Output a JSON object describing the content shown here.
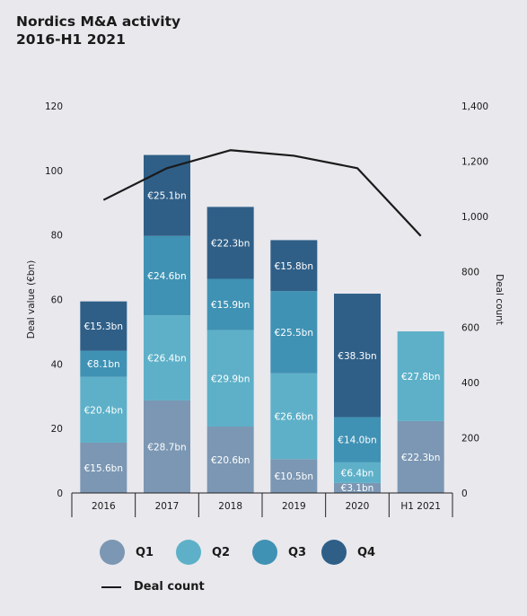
{
  "title_line1": "Nordics M&A activity",
  "title_line2": "2016-H1 2021",
  "chart_data": {
    "type": "bar",
    "stacked": true,
    "categories": [
      "2016",
      "2017",
      "2018",
      "2019",
      "2020",
      "H1 2021"
    ],
    "series": [
      {
        "name": "Q1",
        "color": "#7b97b3",
        "values": [
          15.6,
          28.7,
          20.6,
          10.5,
          3.1,
          22.3
        ],
        "labels": [
          "€15.6bn",
          "€28.7bn",
          "€20.6bn",
          "€10.5bn",
          "€3.1bn",
          "€22.3bn"
        ]
      },
      {
        "name": "Q2",
        "color": "#5db0c8",
        "values": [
          20.4,
          26.4,
          29.9,
          26.6,
          6.4,
          27.8
        ],
        "labels": [
          "€20.4bn",
          "€26.4bn",
          "€29.9bn",
          "€26.6bn",
          "€6.4bn",
          "€27.8bn"
        ]
      },
      {
        "name": "Q3",
        "color": "#3f92b4",
        "values": [
          8.1,
          24.6,
          15.9,
          25.5,
          14.0,
          null
        ],
        "labels": [
          "€8.1bn",
          "€24.6bn",
          "€15.9bn",
          "€25.5bn",
          "€14.0bn",
          ""
        ]
      },
      {
        "name": "Q4",
        "color": "#2f5f87",
        "values": [
          15.3,
          25.1,
          22.3,
          15.8,
          38.3,
          null
        ],
        "labels": [
          "€15.3bn",
          "€25.1bn",
          "€22.3bn",
          "€15.8bn",
          "€38.3bn",
          ""
        ]
      }
    ],
    "line": {
      "name": "Deal count",
      "color": "#1a1a1a",
      "values": [
        1060,
        1175,
        1240,
        1220,
        1175,
        930
      ]
    },
    "ylabel": "Deal value (€bn)",
    "y2label": "Deal count",
    "ylim": [
      0,
      120
    ],
    "y2lim": [
      0,
      1400
    ],
    "yticks": [
      0,
      20,
      40,
      60,
      80,
      100,
      120
    ],
    "yticklabels": [
      "0",
      "20",
      "40",
      "60",
      "80",
      "100",
      "120"
    ],
    "y2ticks": [
      0,
      200,
      400,
      600,
      800,
      1000,
      1200,
      1400
    ],
    "y2ticklabels": [
      "0",
      "200",
      "400",
      "600",
      "800",
      "1,000",
      "1,200",
      "1,400"
    ],
    "grid": false,
    "legend_position": "bottom"
  }
}
